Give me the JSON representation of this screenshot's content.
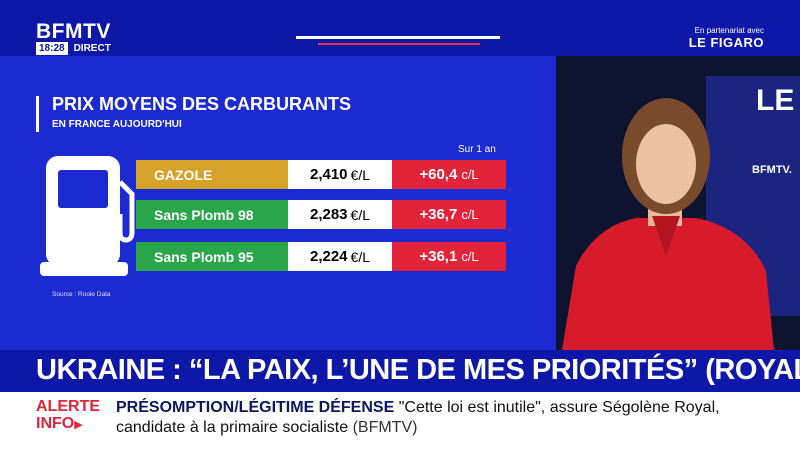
{
  "header": {
    "logo": "BFMTV",
    "time": "18:28",
    "live": "DIRECT",
    "partner_label": "En partenariat avec",
    "partner_name": "LE FIGARO"
  },
  "graphic": {
    "title": "PRIX MOYENS DES CARBURANTS",
    "subtitle": "EN FRANCE AUJOURD'HUI",
    "column_header": "Sur 1 an",
    "source": "Source : Roole Data",
    "rows": [
      {
        "fuel": "GAZOLE",
        "price": "2,410",
        "price_unit": "€/L",
        "change": "+60,4",
        "change_unit": "c/L",
        "color": "#d5a22a"
      },
      {
        "fuel": "Sans Plomb 98",
        "price": "2,283",
        "price_unit": "€/L",
        "change": "+36,7",
        "change_unit": "c/L",
        "color": "#2aa64a"
      },
      {
        "fuel": "Sans Plomb 95",
        "price": "2,224",
        "price_unit": "€/L",
        "change": "+36,1",
        "change_unit": "c/L",
        "color": "#2aa64a"
      }
    ]
  },
  "video": {
    "background_text": "LE",
    "background_logo": "BFMTV."
  },
  "headline": "UKRAINE : “LA PAIX, L’UNE DE MES PRIORITÉS” (ROYAL)",
  "ticker": {
    "alert_line1": "ALERTE",
    "alert_line2": "INFO",
    "topic": "PRÉSOMPTION/LÉGITIME DÉFENSE",
    "text": "\"Cette loi est inutile\", assure Ségolène Royal, candidate à la primaire socialiste",
    "source": "(BFMTV)"
  },
  "colors": {
    "bfm_blue": "#0d17a8",
    "panel_blue": "#1c2ad1",
    "red": "#e3233a",
    "gold": "#d5a22a",
    "green": "#2aa64a"
  }
}
